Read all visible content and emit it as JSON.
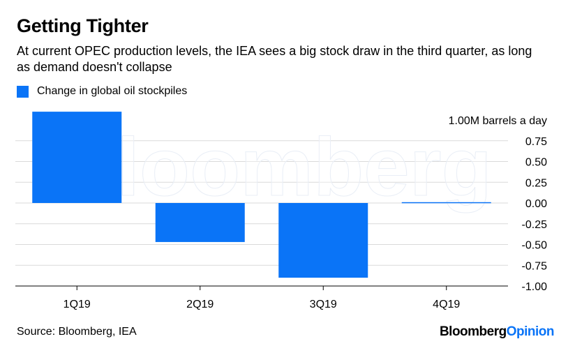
{
  "header": {
    "title": "Getting Tighter",
    "subtitle": "At current OPEC production levels, the IEA sees a big stock draw in the third quarter, as long as demand doesn't collapse"
  },
  "legend": {
    "label": "Change in global oil stockpiles"
  },
  "footer": {
    "source": "Source: Bloomberg, IEA",
    "brand_part1": "Bloomberg",
    "brand_part2": "Opinion"
  },
  "watermark": "Bloomberg",
  "colors": {
    "bar": "#0a74f7",
    "accent": "#0a74f7",
    "grid": "#d9d9d9"
  },
  "chart_data": {
    "type": "bar",
    "categories": [
      "1Q19",
      "2Q19",
      "3Q19",
      "4Q19"
    ],
    "series": [
      {
        "name": "Change in global oil stockpiles",
        "values": [
          1.1,
          -0.47,
          -0.9,
          0.01
        ]
      }
    ],
    "ylim": [
      -1.0,
      1.0
    ],
    "yticks": [
      -1.0,
      -0.75,
      -0.5,
      -0.25,
      0.0,
      0.25,
      0.5,
      0.75,
      1.0
    ],
    "ytick_labels": [
      "-1.00",
      "-0.75",
      "-0.50",
      "-0.25",
      "0.00",
      "0.25",
      "0.50",
      "0.75",
      "1.00M barrels a day"
    ],
    "grid": true,
    "legend_position": "top-left"
  }
}
